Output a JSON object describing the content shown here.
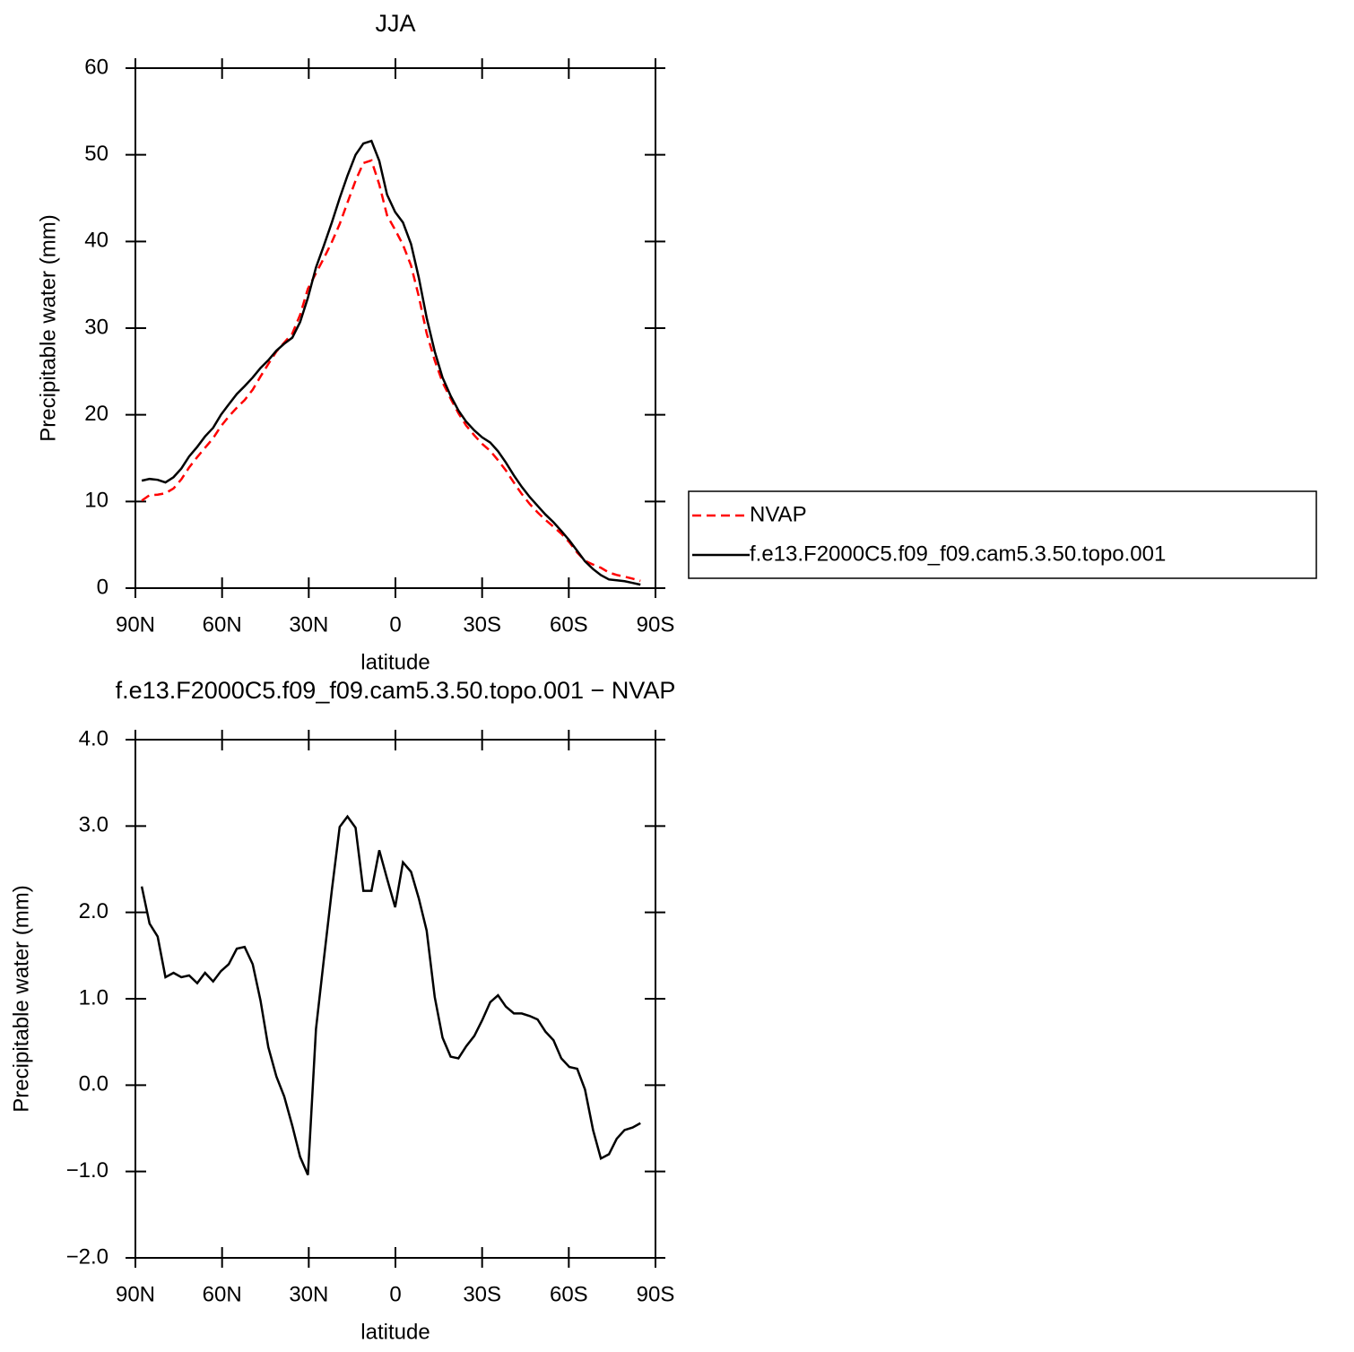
{
  "chart_data": [
    {
      "type": "line",
      "title": "JJA",
      "xlabel": "latitude",
      "ylabel": "Precipitable water (mm)",
      "xlim": [
        90,
        -90
      ],
      "ylim": [
        0,
        60
      ],
      "xticks": [
        {
          "value": 90,
          "label": "90N"
        },
        {
          "value": 60,
          "label": "60N"
        },
        {
          "value": 30,
          "label": "30N"
        },
        0,
        {
          "value": -30,
          "label": "30S"
        },
        {
          "value": -60,
          "label": "60S"
        },
        {
          "value": -90,
          "label": "90S"
        }
      ],
      "yticks": [
        0,
        10,
        20,
        30,
        40,
        50,
        60
      ],
      "legend": "right",
      "x": [
        87.8,
        85.1,
        82.3,
        79.6,
        76.8,
        74.1,
        71.4,
        68.6,
        65.9,
        63.1,
        60.4,
        57.7,
        54.9,
        52.2,
        49.4,
        46.7,
        44.0,
        41.2,
        38.5,
        35.7,
        33.0,
        30.3,
        27.5,
        24.8,
        22.0,
        19.3,
        16.6,
        13.8,
        11.1,
        8.3,
        5.6,
        2.9,
        0.1,
        -2.6,
        -5.4,
        -8.1,
        -10.8,
        -13.6,
        -16.3,
        -19.1,
        -21.8,
        -24.5,
        -27.3,
        -30.0,
        -32.8,
        -35.5,
        -38.2,
        -41.0,
        -43.7,
        -46.5,
        -49.2,
        -51.9,
        -54.7,
        -57.4,
        -60.2,
        -62.9,
        -65.6,
        -68.4,
        -71.1,
        -73.9,
        -76.6,
        -79.3,
        -82.1,
        -84.8
      ],
      "series": [
        {
          "name": "NVAP",
          "color": "#ff0000",
          "style": "dashed",
          "values": [
            10.1,
            10.73,
            10.78,
            10.95,
            11.5,
            12.55,
            13.93,
            15.12,
            16.2,
            17.3,
            18.68,
            19.8,
            20.82,
            21.7,
            22.9,
            24.42,
            25.86,
            27.3,
            28.33,
            29.37,
            31.53,
            34.54,
            36.35,
            38.05,
            39.94,
            42.01,
            44.49,
            47.02,
            49.05,
            49.35,
            46.58,
            43.01,
            41.34,
            39.62,
            37.23,
            33.64,
            29.41,
            26.28,
            23.75,
            21.87,
            20.19,
            18.75,
            17.63,
            16.65,
            15.84,
            14.76,
            13.59,
            12.17,
            10.87,
            9.7,
            8.74,
            7.88,
            7.08,
            6.29,
            5.29,
            4.11,
            3.15,
            2.72,
            2.35,
            1.8,
            1.52,
            1.32,
            1.09,
            0.84
          ]
        },
        {
          "name": "f.e13.F2000C5.f09_f09.cam5.3.50.topo.001",
          "color": "#000000",
          "style": "solid",
          "values": [
            12.4,
            12.6,
            12.5,
            12.2,
            12.8,
            13.8,
            15.2,
            16.3,
            17.5,
            18.5,
            20,
            21.2,
            22.4,
            23.3,
            24.3,
            25.4,
            26.3,
            27.4,
            28.2,
            28.9,
            30.7,
            33.5,
            37,
            39.5,
            42.2,
            45,
            47.6,
            50,
            51.3,
            51.6,
            49.3,
            45.4,
            43.4,
            42.2,
            39.7,
            35.8,
            31.2,
            27.3,
            24.3,
            22.2,
            20.5,
            19.2,
            18.2,
            17.4,
            16.8,
            15.8,
            14.5,
            13,
            11.7,
            10.5,
            9.5,
            8.5,
            7.6,
            6.6,
            5.5,
            4.3,
            3.1,
            2.2,
            1.5,
            1.0,
            0.9,
            0.8,
            0.6,
            0.4
          ]
        }
      ]
    },
    {
      "type": "line",
      "title": "f.e13.F2000C5.f09_f09.cam5.3.50.topo.001 − NVAP",
      "xlabel": "latitude",
      "ylabel": "Precipitable water (mm)",
      "xlim": [
        90,
        -90
      ],
      "ylim": [
        -2,
        4
      ],
      "xticks": [
        {
          "value": 90,
          "label": "90N"
        },
        {
          "value": 60,
          "label": "60N"
        },
        {
          "value": 30,
          "label": "30N"
        },
        0,
        {
          "value": -30,
          "label": "30S"
        },
        {
          "value": -60,
          "label": "60S"
        },
        {
          "value": -90,
          "label": "90S"
        }
      ],
      "yticks": [
        {
          "value": -2,
          "label": "−2.0"
        },
        {
          "value": -1,
          "label": "−1.0"
        },
        {
          "value": 0,
          "label": "0.0"
        },
        {
          "value": 1,
          "label": "1.0"
        },
        {
          "value": 2,
          "label": "2.0"
        },
        {
          "value": 3,
          "label": "3.0"
        },
        {
          "value": 4,
          "label": "4.0"
        }
      ],
      "x": [
        87.8,
        85.1,
        82.3,
        79.6,
        76.8,
        74.1,
        71.4,
        68.6,
        65.9,
        63.1,
        60.4,
        57.7,
        54.9,
        52.2,
        49.4,
        46.7,
        44.0,
        41.2,
        38.5,
        35.7,
        33.0,
        30.3,
        27.5,
        24.8,
        22.0,
        19.3,
        16.6,
        13.8,
        11.1,
        8.3,
        5.6,
        2.9,
        0.1,
        -2.6,
        -5.4,
        -8.1,
        -10.8,
        -13.6,
        -16.3,
        -19.1,
        -21.8,
        -24.5,
        -27.3,
        -30.0,
        -32.8,
        -35.5,
        -38.2,
        -41.0,
        -43.7,
        -46.5,
        -49.2,
        -51.9,
        -54.7,
        -57.4,
        -60.2,
        -62.9,
        -65.6,
        -68.4,
        -71.1,
        -73.9,
        -76.6,
        -79.3,
        -82.1,
        -84.8
      ],
      "series": [
        {
          "color": "#000000",
          "style": "solid",
          "values": [
            2.3,
            1.87,
            1.72,
            1.25,
            1.3,
            1.25,
            1.27,
            1.18,
            1.3,
            1.2,
            1.32,
            1.4,
            1.58,
            1.6,
            1.4,
            0.98,
            0.44,
            0.1,
            -0.13,
            -0.47,
            -0.83,
            -1.04,
            0.65,
            1.45,
            2.26,
            2.99,
            3.11,
            2.98,
            2.25,
            2.25,
            2.72,
            2.39,
            2.06,
            2.58,
            2.47,
            2.16,
            1.79,
            1.02,
            0.55,
            0.33,
            0.31,
            0.45,
            0.57,
            0.75,
            0.96,
            1.04,
            0.91,
            0.83,
            0.83,
            0.8,
            0.76,
            0.62,
            0.52,
            0.31,
            0.21,
            0.19,
            -0.05,
            -0.52,
            -0.85,
            -0.8,
            -0.62,
            -0.52,
            -0.49,
            -0.44
          ]
        }
      ]
    }
  ]
}
